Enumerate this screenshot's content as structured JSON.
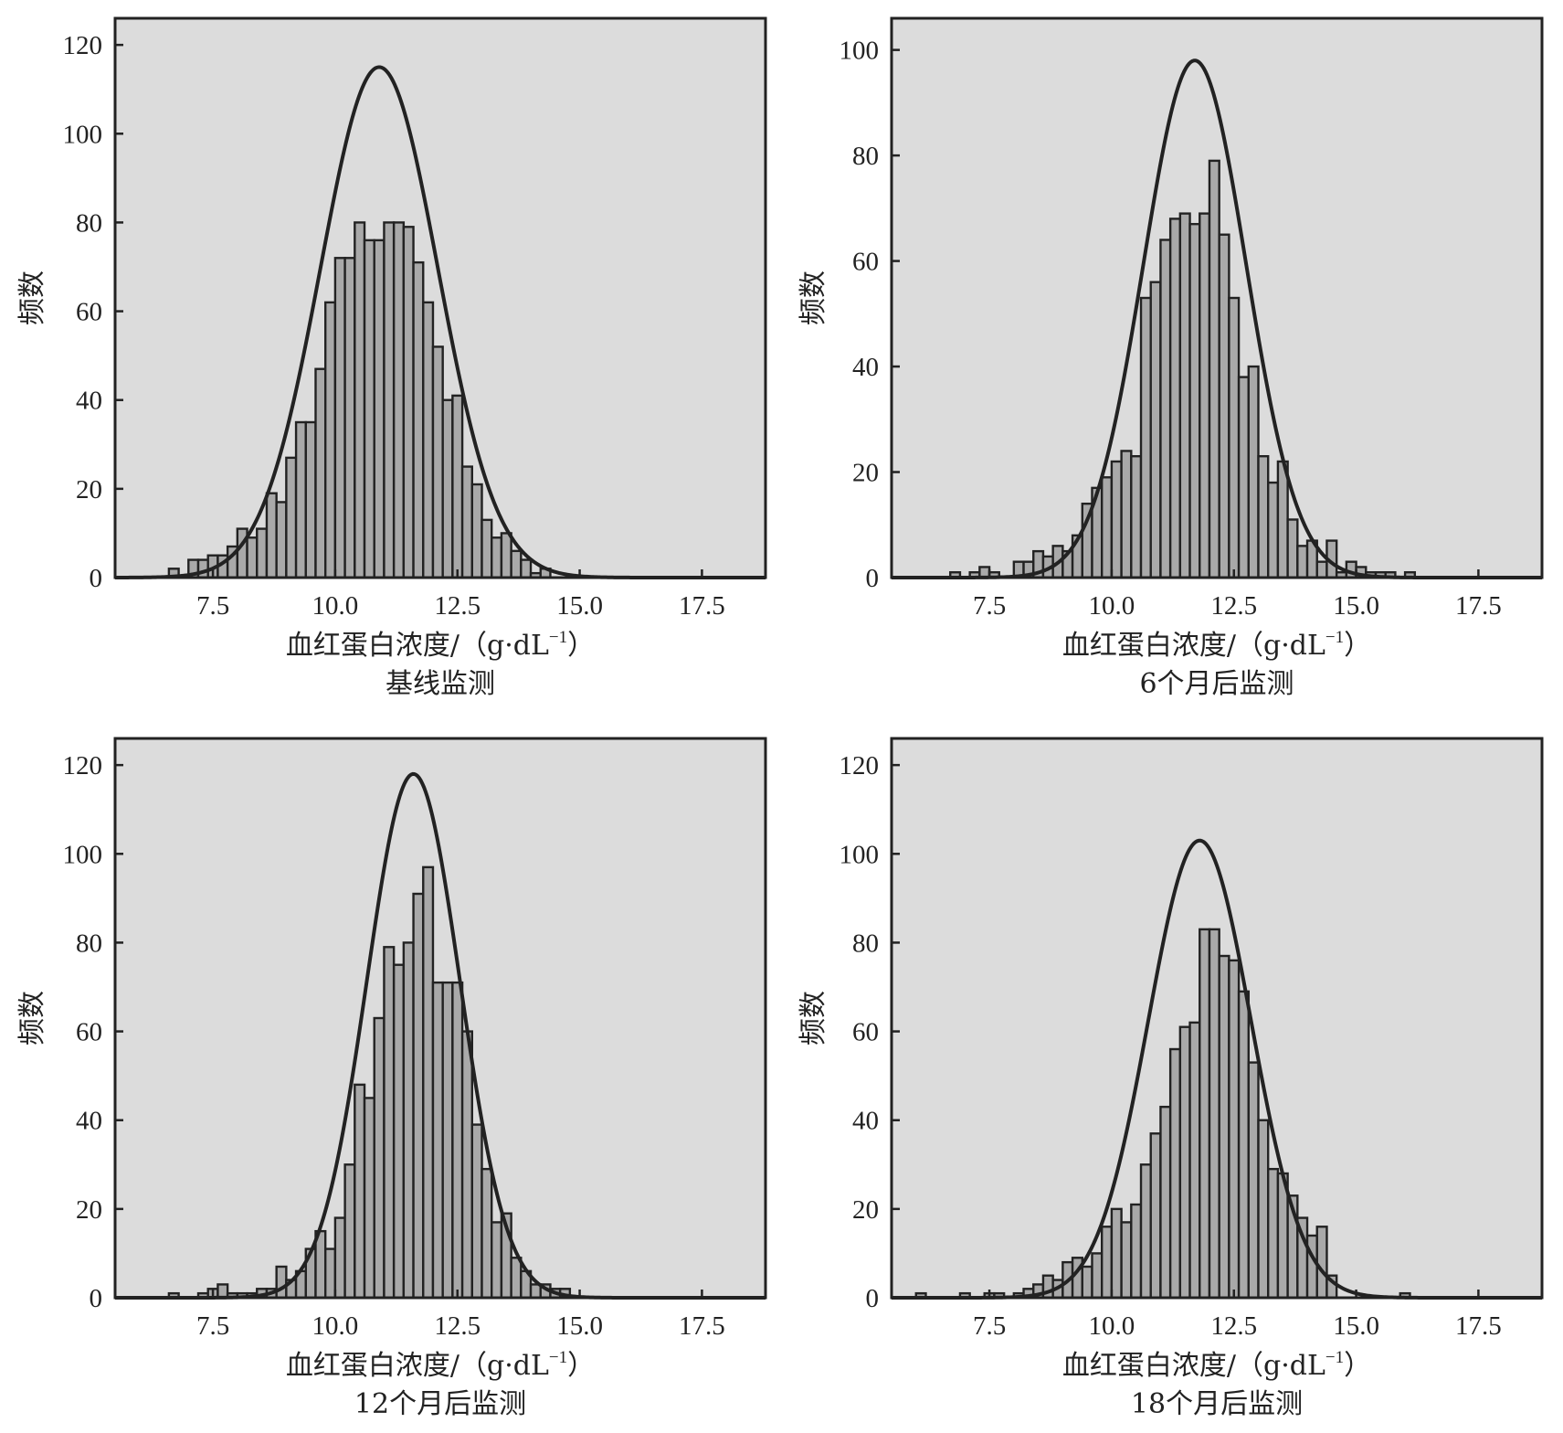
{
  "chart_data": [
    {
      "type": "bar",
      "title": "基线监测",
      "xlabel": "血红蛋白浓度/（g·dL",
      "xlabel_sup": "−1",
      "xlabel_close": "）",
      "ylabel": "频数",
      "xlim": [
        5.5,
        18.8
      ],
      "ylim": [
        0,
        126
      ],
      "xticks": [
        "7.5",
        "10.0",
        "12.5",
        "15.0",
        "17.5"
      ],
      "yticks": [
        "0",
        "20",
        "40",
        "60",
        "80",
        "100",
        "120"
      ],
      "bin_width": 0.2,
      "x": [
        6.7,
        7.1,
        7.3,
        7.5,
        7.7,
        7.9,
        8.1,
        8.3,
        8.5,
        8.7,
        8.9,
        9.1,
        9.3,
        9.5,
        9.7,
        9.9,
        10.1,
        10.3,
        10.5,
        10.7,
        10.9,
        11.1,
        11.3,
        11.5,
        11.7,
        11.9,
        12.1,
        12.3,
        12.5,
        12.7,
        12.9,
        13.1,
        13.3,
        13.5,
        13.7,
        13.9,
        14.1,
        14.3
      ],
      "values": [
        2,
        4,
        4,
        5,
        5,
        7,
        11,
        9,
        11,
        19,
        17,
        27,
        35,
        35,
        47,
        62,
        72,
        72,
        80,
        76,
        76,
        80,
        80,
        79,
        71,
        62,
        52,
        40,
        41,
        25,
        21,
        13,
        9,
        10,
        6,
        4,
        1,
        2
      ],
      "normal_fit": {
        "mean": 10.9,
        "sd": 1.2,
        "peak": 115
      }
    },
    {
      "type": "bar",
      "title": "6个月后监测",
      "xlabel": "血红蛋白浓度/（g·dL",
      "xlabel_sup": "−1",
      "xlabel_close": "）",
      "ylabel": "频数",
      "xlim": [
        5.5,
        18.8
      ],
      "ylim": [
        0,
        106
      ],
      "xticks": [
        "7.5",
        "10.0",
        "12.5",
        "15.0",
        "17.5"
      ],
      "yticks": [
        "0",
        "20",
        "40",
        "60",
        "80",
        "100"
      ],
      "bin_width": 0.2,
      "x": [
        6.8,
        7.2,
        7.4,
        7.6,
        8.1,
        8.3,
        8.5,
        8.7,
        8.9,
        9.1,
        9.3,
        9.5,
        9.7,
        9.9,
        10.1,
        10.3,
        10.5,
        10.7,
        10.9,
        11.1,
        11.3,
        11.5,
        11.7,
        11.9,
        12.1,
        12.3,
        12.5,
        12.7,
        12.9,
        13.1,
        13.3,
        13.5,
        13.7,
        13.9,
        14.1,
        14.3,
        14.5,
        14.7,
        14.9,
        15.1,
        15.3,
        15.5,
        15.7,
        16.1
      ],
      "values": [
        1,
        1,
        2,
        1,
        3,
        3,
        5,
        4,
        6,
        5,
        8,
        14,
        17,
        19,
        22,
        24,
        23,
        53,
        56,
        64,
        68,
        69,
        67,
        69,
        79,
        65,
        53,
        38,
        40,
        23,
        18,
        22,
        11,
        6,
        7,
        3,
        7,
        1,
        3,
        2,
        1,
        1,
        1,
        1
      ],
      "normal_fit": {
        "mean": 11.7,
        "sd": 1.05,
        "peak": 98
      }
    },
    {
      "type": "bar",
      "title": "12个月后监测",
      "xlabel": "血红蛋白浓度/（g·dL",
      "xlabel_sup": "−1",
      "xlabel_close": "）",
      "ylabel": "频数",
      "xlim": [
        5.5,
        18.8
      ],
      "ylim": [
        0,
        126
      ],
      "xticks": [
        "7.5",
        "10.0",
        "12.5",
        "15.0",
        "17.5"
      ],
      "yticks": [
        "0",
        "20",
        "40",
        "60",
        "80",
        "100",
        "120"
      ],
      "bin_width": 0.2,
      "x": [
        6.7,
        7.3,
        7.5,
        7.7,
        7.9,
        8.1,
        8.3,
        8.5,
        8.7,
        8.9,
        9.1,
        9.3,
        9.5,
        9.7,
        9.9,
        10.1,
        10.3,
        10.5,
        10.7,
        10.9,
        11.1,
        11.3,
        11.5,
        11.7,
        11.9,
        12.1,
        12.3,
        12.5,
        12.7,
        12.9,
        13.1,
        13.3,
        13.5,
        13.7,
        13.9,
        14.1,
        14.3,
        14.5,
        14.7
      ],
      "values": [
        1,
        1,
        2,
        3,
        1,
        1,
        1,
        2,
        2,
        7,
        4,
        6,
        11,
        15,
        11,
        18,
        30,
        48,
        45,
        63,
        79,
        75,
        80,
        91,
        97,
        71,
        71,
        71,
        60,
        39,
        29,
        17,
        19,
        9,
        6,
        3,
        3,
        2,
        2
      ],
      "normal_fit": {
        "mean": 11.6,
        "sd": 0.95,
        "peak": 118
      }
    },
    {
      "type": "bar",
      "title": "18个月后监测",
      "xlabel": "血红蛋白浓度/（g·dL",
      "xlabel_sup": "−1",
      "xlabel_close": "）",
      "ylabel": "频数",
      "xlim": [
        5.5,
        18.8
      ],
      "ylim": [
        0,
        126
      ],
      "xticks": [
        "7.5",
        "10.0",
        "12.5",
        "15.0",
        "17.5"
      ],
      "yticks": [
        "0",
        "20",
        "40",
        "60",
        "80",
        "100",
        "120"
      ],
      "bin_width": 0.2,
      "x": [
        6.1,
        7.0,
        7.5,
        7.7,
        8.1,
        8.3,
        8.5,
        8.7,
        8.9,
        9.1,
        9.3,
        9.5,
        9.7,
        9.9,
        10.1,
        10.3,
        10.5,
        10.7,
        10.9,
        11.1,
        11.3,
        11.5,
        11.7,
        11.9,
        12.1,
        12.3,
        12.5,
        12.7,
        12.9,
        13.1,
        13.3,
        13.5,
        13.7,
        13.9,
        14.1,
        14.3,
        14.5,
        16.0
      ],
      "values": [
        1,
        1,
        1,
        1,
        1,
        2,
        3,
        5,
        4,
        8,
        9,
        7,
        10,
        16,
        20,
        17,
        21,
        30,
        37,
        43,
        56,
        61,
        62,
        83,
        83,
        77,
        76,
        69,
        53,
        40,
        29,
        28,
        23,
        18,
        14,
        16,
        5,
        1
      ],
      "normal_fit": {
        "mean": 11.8,
        "sd": 1.05,
        "peak": 103
      }
    }
  ]
}
